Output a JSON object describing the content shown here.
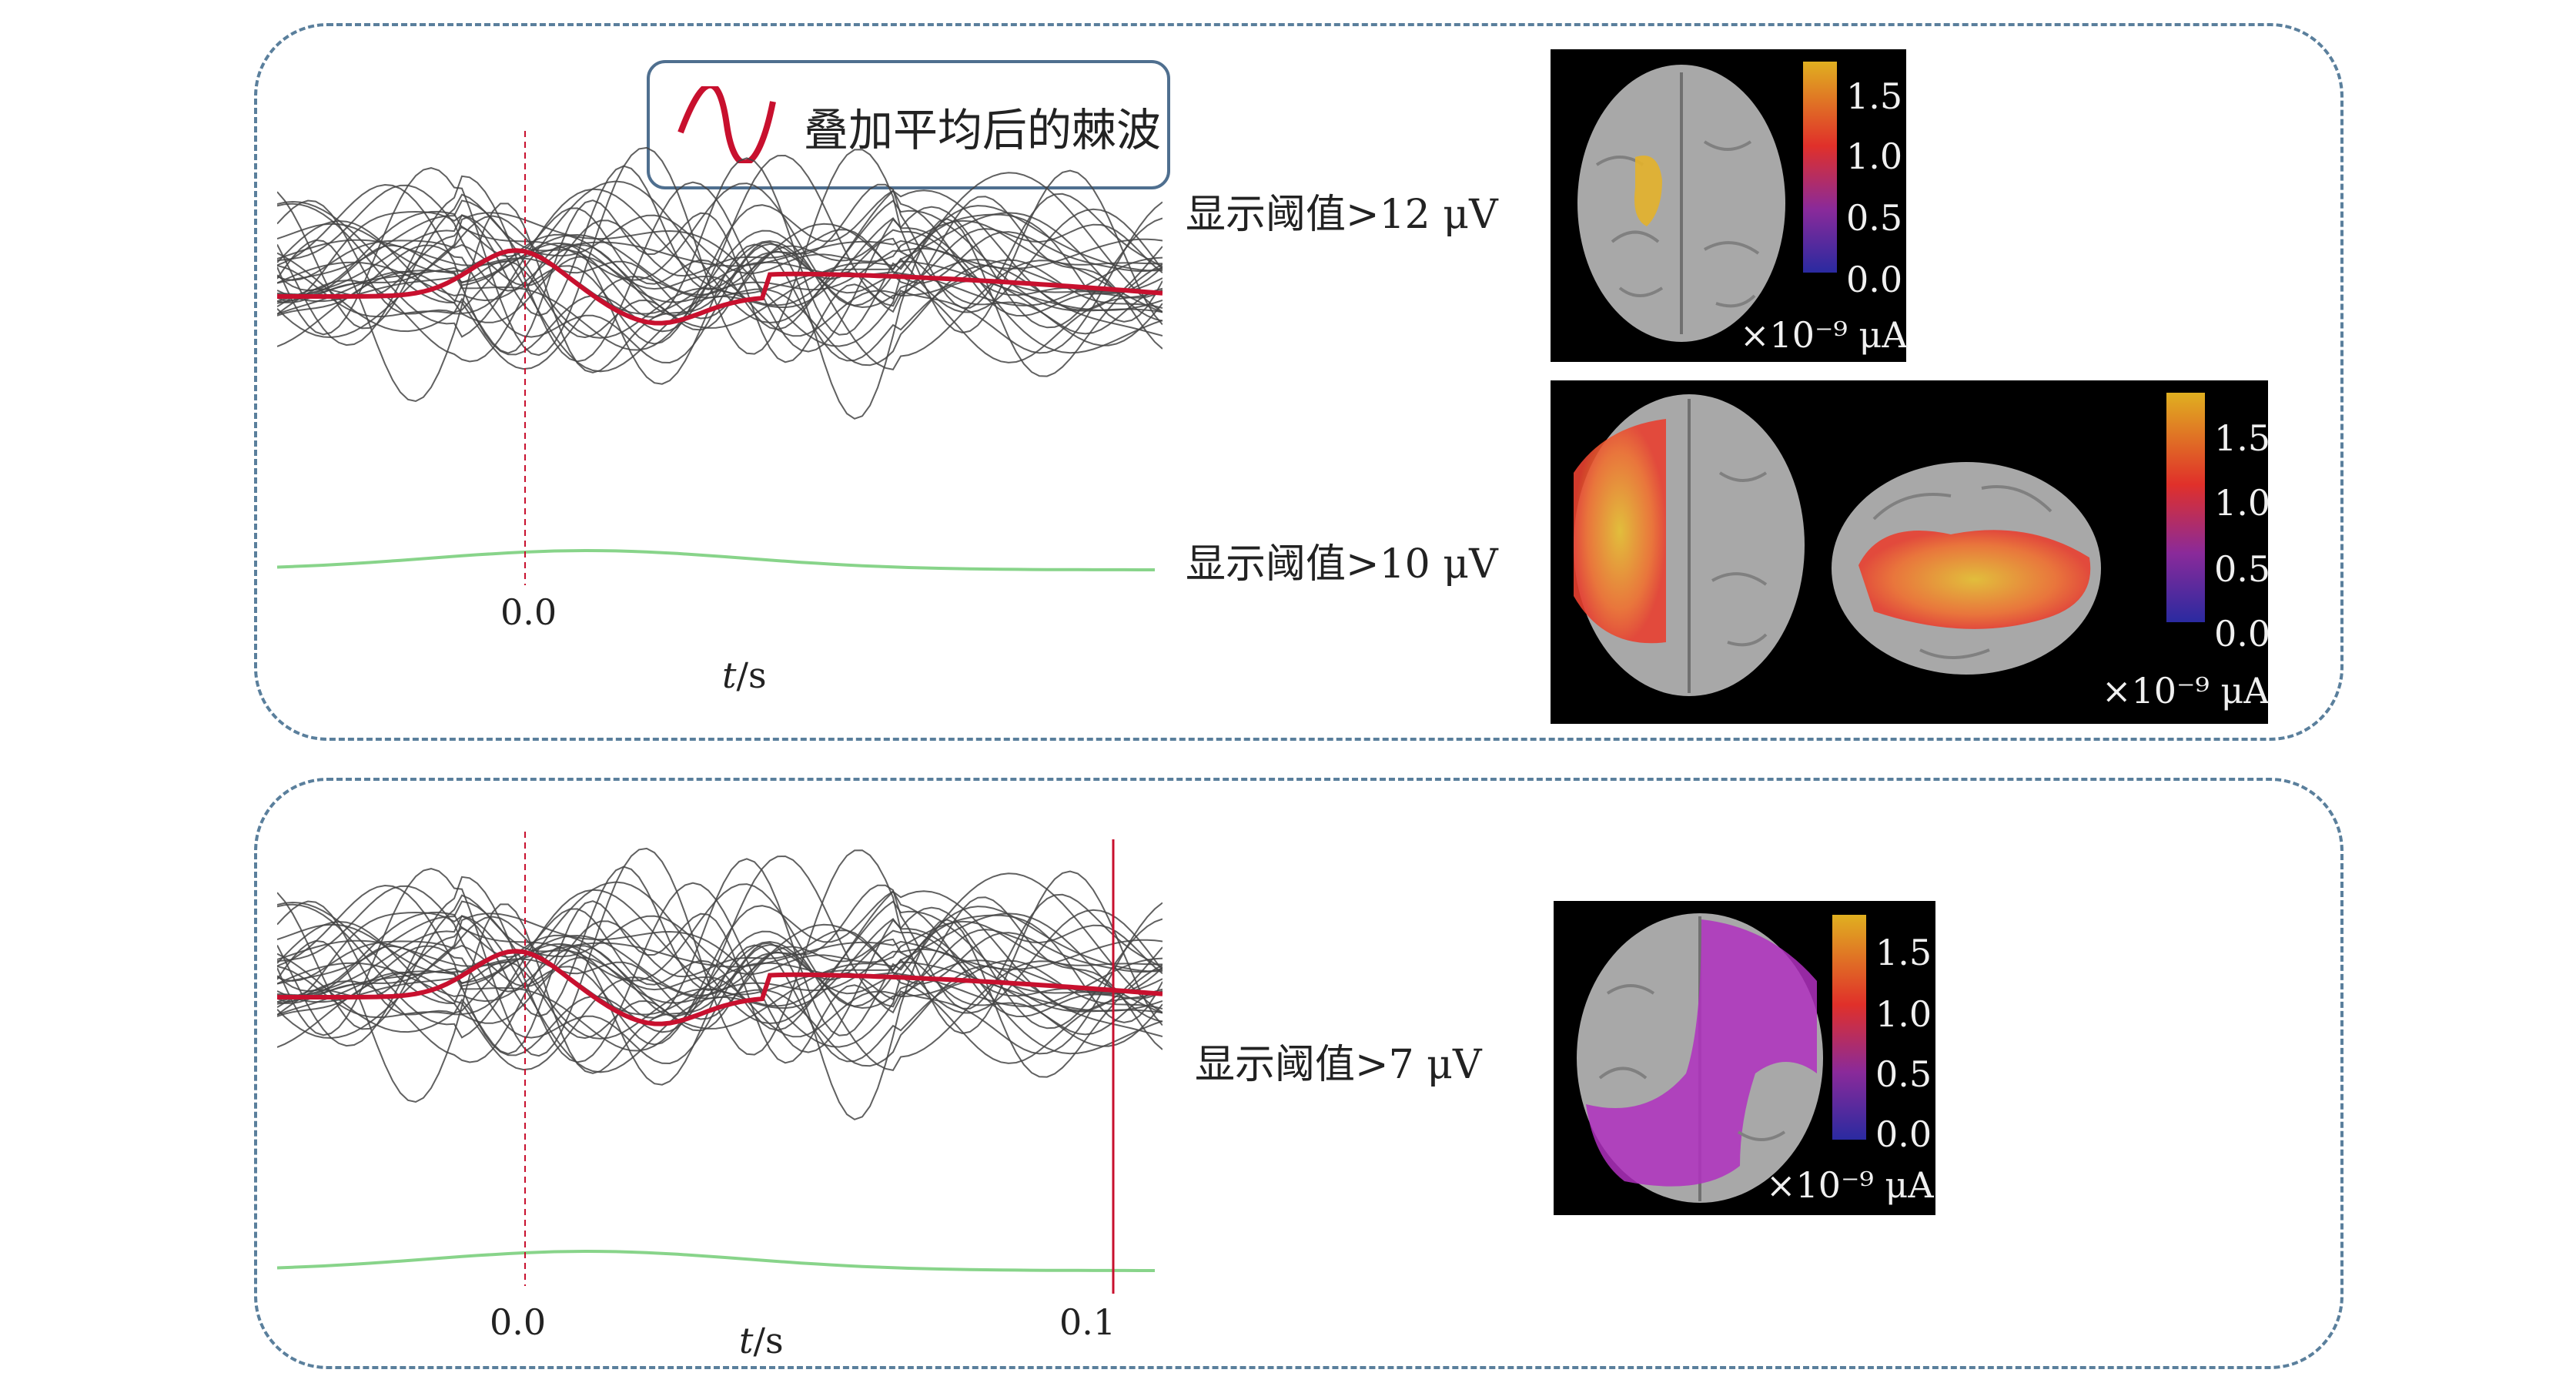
{
  "legend": {
    "label": "叠加平均后的棘波",
    "color": "#c8102e"
  },
  "top_panel": {
    "tick_zero": "0.0",
    "axis_label_var": "t",
    "axis_label_unit": "/s",
    "thresholds": [
      "显示阈值>12 μV",
      "显示阈值>10 μV"
    ]
  },
  "bottom_panel": {
    "tick_zero": "0.0",
    "tick_end": "0.1",
    "axis_label_var": "t",
    "axis_label_unit": "/s",
    "threshold": "显示阈值>7 μV"
  },
  "colorbar": {
    "ticks": [
      "1.5",
      "1.0",
      "0.5",
      "0.0"
    ],
    "unit": "×10⁻⁹ μA"
  },
  "colors": {
    "panel_border": "#5a7f9c",
    "average_spike": "#c8102e",
    "baseline": "#88d48a",
    "traces": "#444444"
  }
}
